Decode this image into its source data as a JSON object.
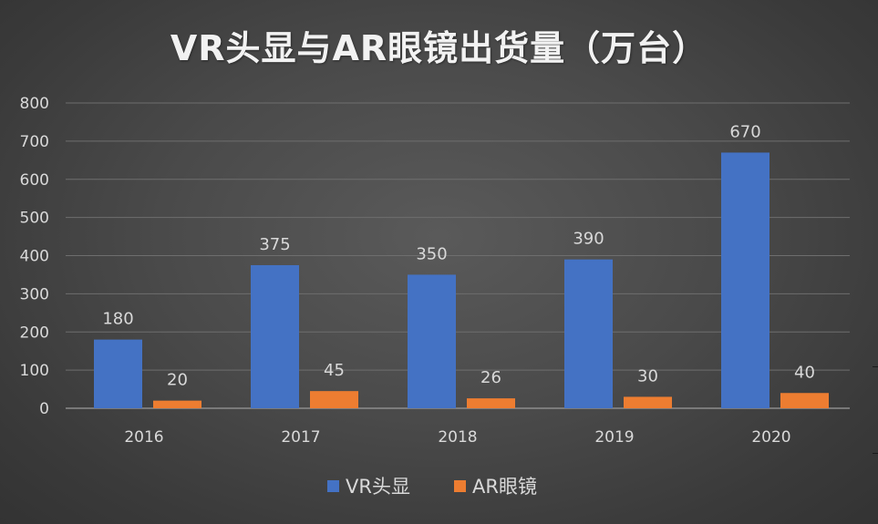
{
  "colors": {
    "vr": "#4472c4",
    "ar": "#ed7d31",
    "text": "#d9d9d9",
    "grid": "#6e6e6e"
  },
  "chart_data": {
    "type": "bar",
    "title": "VR头显与AR眼镜出货量（万台）",
    "categories": [
      "2016",
      "2017",
      "2018",
      "2019",
      "2020"
    ],
    "series": [
      {
        "name": "VR头显",
        "values": [
          180,
          375,
          350,
          390,
          670
        ]
      },
      {
        "name": "AR眼镜",
        "values": [
          20,
          45,
          26,
          30,
          40
        ]
      }
    ],
    "ylim": [
      0,
      800
    ],
    "yticks": [
      0,
      100,
      200,
      300,
      400,
      500,
      600,
      700,
      800
    ],
    "grid": true,
    "legend": "bottom",
    "data_labels": true
  }
}
